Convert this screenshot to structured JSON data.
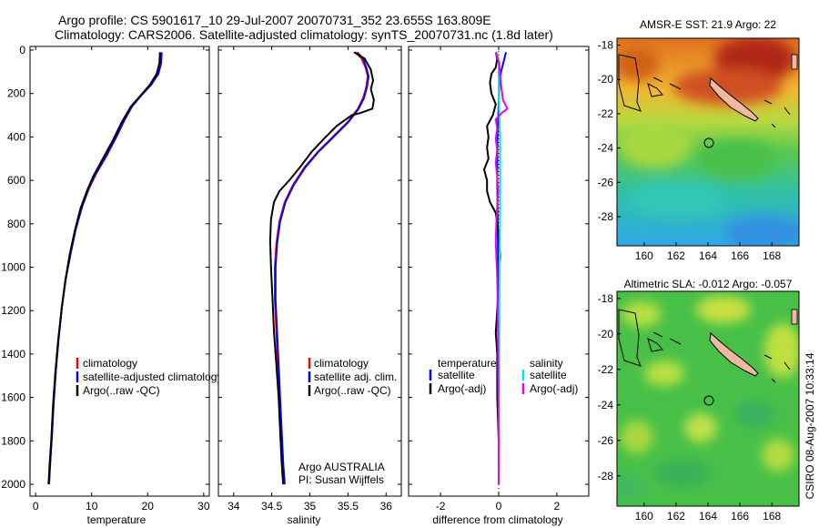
{
  "header": {
    "line1": "Argo profile: CS 5901617_10 29-Jul-2007 20070731_352 23.655S 163.809E",
    "line2": "Climatology: CARS2006. Satellite-adjusted climatology: synTS_20070731.nc (1.8d later)"
  },
  "side_caption": "CSIRO 08-Aug-2007 10:33:14",
  "colors": {
    "climatology": "#ff0000",
    "satellite": "#0000ff",
    "argo": "#000000",
    "sat_diff": "#00e5ee",
    "argo_diff": "#ee00ee"
  },
  "chart_data": [
    {
      "type": "line",
      "xlabel": "temperature",
      "xlim": [
        -1,
        31
      ],
      "ylim": [
        0,
        2080
      ],
      "y_reversed": true,
      "xticks": [
        0,
        10,
        20,
        30
      ],
      "yticks": [
        0,
        200,
        400,
        600,
        800,
        1000,
        1200,
        1400,
        1600,
        1800,
        2000
      ],
      "legend": [
        "climatology",
        "satellite-adjusted climatology",
        "Argo(..raw -QC)"
      ],
      "series": [
        {
          "name": "climatology",
          "color": "#ff0000",
          "points": [
            [
              22.3,
              10
            ],
            [
              22.2,
              60
            ],
            [
              21.8,
              110
            ],
            [
              20.6,
              160
            ],
            [
              18.8,
              210
            ],
            [
              17.2,
              260
            ],
            [
              15.9,
              320
            ],
            [
              14.4,
              400
            ],
            [
              12.6,
              490
            ],
            [
              10.8,
              570
            ],
            [
              9.5,
              640
            ],
            [
              8.3,
              720
            ],
            [
              7.2,
              820
            ],
            [
              6.3,
              930
            ],
            [
              5.4,
              1050
            ],
            [
              4.7,
              1180
            ],
            [
              4.1,
              1330
            ],
            [
              3.6,
              1480
            ],
            [
              3.2,
              1630
            ],
            [
              2.9,
              1780
            ],
            [
              2.6,
              1900
            ],
            [
              2.4,
              2000
            ]
          ]
        },
        {
          "name": "satellite-adjusted climatology",
          "color": "#0000ff",
          "points": [
            [
              22.5,
              10
            ],
            [
              22.4,
              60
            ],
            [
              21.9,
              110
            ],
            [
              20.6,
              160
            ],
            [
              18.8,
              210
            ],
            [
              17.2,
              260
            ],
            [
              15.9,
              320
            ],
            [
              14.4,
              400
            ],
            [
              12.5,
              490
            ],
            [
              10.7,
              570
            ],
            [
              9.4,
              640
            ],
            [
              8.3,
              720
            ],
            [
              7.2,
              820
            ],
            [
              6.3,
              930
            ],
            [
              5.4,
              1050
            ],
            [
              4.7,
              1180
            ],
            [
              4.1,
              1330
            ],
            [
              3.6,
              1480
            ],
            [
              3.2,
              1630
            ],
            [
              2.9,
              1780
            ],
            [
              2.6,
              1900
            ],
            [
              2.4,
              2000
            ]
          ]
        },
        {
          "name": "Argo(..raw -QC)",
          "color": "#000000",
          "points": [
            [
              22.2,
              10
            ],
            [
              22.1,
              60
            ],
            [
              21.6,
              110
            ],
            [
              20.4,
              160
            ],
            [
              18.7,
              210
            ],
            [
              17.0,
              260
            ],
            [
              15.4,
              330
            ],
            [
              13.9,
              410
            ],
            [
              12.0,
              500
            ],
            [
              10.3,
              580
            ],
            [
              9.3,
              640
            ],
            [
              8.0,
              730
            ],
            [
              7.0,
              830
            ],
            [
              6.1,
              940
            ],
            [
              5.3,
              1060
            ],
            [
              4.6,
              1200
            ],
            [
              4.0,
              1340
            ],
            [
              3.5,
              1490
            ],
            [
              3.1,
              1640
            ],
            [
              2.8,
              1790
            ],
            [
              2.5,
              1910
            ],
            [
              2.3,
              2000
            ]
          ]
        }
      ]
    },
    {
      "type": "line",
      "xlabel": "salinity",
      "xlim": [
        33.8,
        36.2
      ],
      "ylim": [
        0,
        2080
      ],
      "y_reversed": true,
      "xticks": [
        34,
        34.5,
        35,
        35.5,
        36
      ],
      "legend": [
        "climatology",
        "satellite adj. clim.",
        "Argo(..raw -QC)"
      ],
      "annotation": [
        "Argo AUSTRALIA",
        "PI: Susan Wijffels"
      ],
      "series": [
        {
          "name": "climatology",
          "color": "#ff0000",
          "points": [
            [
              35.6,
              10
            ],
            [
              35.68,
              40
            ],
            [
              35.73,
              80
            ],
            [
              35.76,
              120
            ],
            [
              35.74,
              170
            ],
            [
              35.7,
              220
            ],
            [
              35.63,
              270
            ],
            [
              35.5,
              330
            ],
            [
              35.3,
              400
            ],
            [
              35.1,
              470
            ],
            [
              34.93,
              540
            ],
            [
              34.78,
              620
            ],
            [
              34.67,
              700
            ],
            [
              34.6,
              790
            ],
            [
              34.56,
              890
            ],
            [
              34.54,
              1000
            ],
            [
              34.54,
              1150
            ],
            [
              34.56,
              1300
            ],
            [
              34.58,
              1450
            ],
            [
              34.6,
              1600
            ],
            [
              34.62,
              1750
            ],
            [
              34.64,
              1900
            ],
            [
              34.66,
              2000
            ]
          ]
        },
        {
          "name": "satellite adj. clim.",
          "color": "#0000ff",
          "points": [
            [
              35.62,
              10
            ],
            [
              35.7,
              40
            ],
            [
              35.74,
              80
            ],
            [
              35.77,
              120
            ],
            [
              35.75,
              170
            ],
            [
              35.71,
              220
            ],
            [
              35.64,
              270
            ],
            [
              35.51,
              330
            ],
            [
              35.31,
              400
            ],
            [
              35.11,
              470
            ],
            [
              34.94,
              540
            ],
            [
              34.79,
              620
            ],
            [
              34.68,
              700
            ],
            [
              34.61,
              790
            ],
            [
              34.57,
              890
            ],
            [
              34.55,
              1000
            ],
            [
              34.55,
              1150
            ],
            [
              34.57,
              1300
            ],
            [
              34.59,
              1450
            ],
            [
              34.61,
              1600
            ],
            [
              34.63,
              1750
            ],
            [
              34.65,
              1900
            ],
            [
              34.67,
              2000
            ]
          ]
        },
        {
          "name": "Argo(..raw -QC)",
          "color": "#000000",
          "points": [
            [
              35.58,
              10
            ],
            [
              35.72,
              40
            ],
            [
              35.8,
              90
            ],
            [
              35.83,
              140
            ],
            [
              35.8,
              180
            ],
            [
              35.84,
              230
            ],
            [
              35.82,
              270
            ],
            [
              35.66,
              290
            ],
            [
              35.55,
              300
            ],
            [
              35.35,
              350
            ],
            [
              35.18,
              410
            ],
            [
              35.02,
              470
            ],
            [
              34.87,
              540
            ],
            [
              34.73,
              600
            ],
            [
              34.6,
              650
            ],
            [
              34.53,
              700
            ],
            [
              34.49,
              780
            ],
            [
              34.48,
              880
            ],
            [
              34.49,
              1000
            ],
            [
              34.51,
              1150
            ],
            [
              34.53,
              1300
            ],
            [
              34.56,
              1450
            ],
            [
              34.59,
              1600
            ],
            [
              34.61,
              1750
            ],
            [
              34.63,
              1900
            ],
            [
              34.65,
              2000
            ]
          ]
        }
      ]
    },
    {
      "type": "line",
      "xlabel": "difference from climatology",
      "xlim": [
        -3.1,
        3.1
      ],
      "ylim": [
        0,
        2080
      ],
      "y_reversed": true,
      "xticks": [
        -2,
        0,
        2
      ],
      "legend_headers": [
        "temperature",
        "salinity"
      ],
      "legend": [
        "satellite",
        "Argo(-adj)",
        "satellite",
        "Argo(-adj)"
      ],
      "series": [
        {
          "name": "temperature satellite",
          "color": "#0000ff",
          "points": [
            [
              0.25,
              10
            ],
            [
              0.18,
              50
            ],
            [
              0.08,
              100
            ],
            [
              0.02,
              150
            ],
            [
              0.0,
              250
            ],
            [
              -0.04,
              400
            ],
            [
              -0.05,
              600
            ],
            [
              -0.03,
              800
            ],
            [
              -0.02,
              1000
            ],
            [
              -0.01,
              1300
            ],
            [
              0.0,
              1600
            ],
            [
              0.0,
              2000
            ]
          ]
        },
        {
          "name": "temperature Argo(-adj)",
          "color": "#000000",
          "points": [
            [
              -0.1,
              10
            ],
            [
              -0.05,
              40
            ],
            [
              -0.1,
              80
            ],
            [
              -0.25,
              110
            ],
            [
              -0.3,
              150
            ],
            [
              -0.25,
              200
            ],
            [
              -0.1,
              250
            ],
            [
              -0.2,
              300
            ],
            [
              -0.4,
              350
            ],
            [
              -0.35,
              400
            ],
            [
              -0.4,
              450
            ],
            [
              -0.35,
              500
            ],
            [
              -0.5,
              550
            ],
            [
              -0.4,
              600
            ],
            [
              -0.4,
              650
            ],
            [
              -0.3,
              700
            ],
            [
              -0.1,
              750
            ],
            [
              -0.05,
              800
            ],
            [
              0.0,
              850
            ],
            [
              0.05,
              950
            ],
            [
              0.0,
              1050
            ],
            [
              -0.05,
              1200
            ],
            [
              -0.1,
              1300
            ],
            [
              -0.05,
              1400
            ],
            [
              -0.05,
              1600
            ],
            [
              0.0,
              1800
            ],
            [
              0.0,
              2000
            ]
          ]
        },
        {
          "name": "salinity satellite",
          "color": "#00e5ee",
          "points": [
            [
              -0.05,
              10
            ],
            [
              0.0,
              60
            ],
            [
              0.0,
              200
            ],
            [
              0.05,
              400
            ],
            [
              0.05,
              700
            ],
            [
              0.03,
              1000
            ],
            [
              0.02,
              1400
            ],
            [
              0.0,
              2000
            ]
          ]
        },
        {
          "name": "salinity Argo(-adj)",
          "color": "#ee00ee",
          "points": [
            [
              -0.1,
              10
            ],
            [
              0.02,
              60
            ],
            [
              0.05,
              120
            ],
            [
              0.1,
              180
            ],
            [
              0.15,
              230
            ],
            [
              0.3,
              270
            ],
            [
              0.1,
              290
            ],
            [
              -0.1,
              320
            ],
            [
              -0.05,
              360
            ],
            [
              -0.1,
              410
            ],
            [
              -0.05,
              460
            ],
            [
              -0.1,
              520
            ],
            [
              -0.05,
              580
            ],
            [
              -0.02,
              650
            ],
            [
              -0.05,
              720
            ],
            [
              -0.08,
              800
            ],
            [
              -0.1,
              880
            ],
            [
              -0.08,
              950
            ],
            [
              -0.05,
              1050
            ],
            [
              -0.03,
              1200
            ],
            [
              -0.02,
              1400
            ],
            [
              -0.01,
              1600
            ],
            [
              0.0,
              1800
            ],
            [
              0.0,
              2000
            ]
          ]
        }
      ]
    },
    {
      "type": "heatmap",
      "title": "AMSR-E SST: 21.9 Argo: 22",
      "xlim": [
        158.3,
        169.7
      ],
      "ylim": [
        -29.7,
        -17.6
      ],
      "xticks": [
        160,
        162,
        164,
        166,
        168
      ],
      "yticks": [
        -18,
        -20,
        -22,
        -24,
        -26,
        -28
      ],
      "marker": {
        "lon": 163.809,
        "lat": -23.655
      }
    },
    {
      "type": "heatmap",
      "title": "Altimetric SLA: -0.012 Argo: -0.057",
      "xlim": [
        158.3,
        169.7
      ],
      "ylim": [
        -29.7,
        -17.6
      ],
      "xticks": [
        160,
        162,
        164,
        166,
        168
      ],
      "yticks": [
        -18,
        -20,
        -22,
        -24,
        -26,
        -28
      ],
      "marker": {
        "lon": 163.809,
        "lat": -23.655
      }
    }
  ]
}
